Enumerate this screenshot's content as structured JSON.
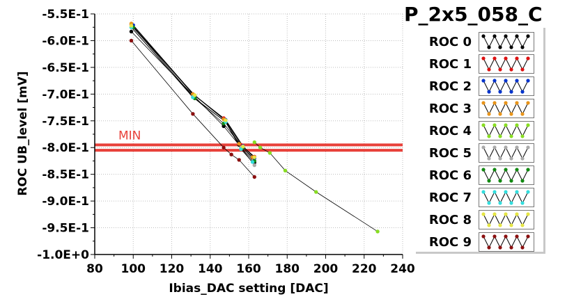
{
  "chart_data": {
    "type": "scatter",
    "title": "P_2x5_058_C",
    "xlabel": "Ibias_DAC setting [DAC]",
    "ylabel": "ROC UB_level [mV]",
    "xlim": [
      80,
      240
    ],
    "ylim": [
      -1.0,
      -0.55
    ],
    "x_ticks": [
      "80",
      "100",
      "120",
      "140",
      "160",
      "180",
      "200",
      "220",
      "240"
    ],
    "y_ticks": [
      "-5.5E-1",
      "-6.0E-1",
      "-6.5E-1",
      "-7.0E-1",
      "-7.5E-1",
      "-8.0E-1",
      "-8.5E-1",
      "-9.0E-1",
      "-9.5E-1",
      "-1.0E+0"
    ],
    "grid": true,
    "legend_position": "right",
    "min_band": {
      "label": "MIN",
      "y": [
        -0.795,
        -0.805
      ],
      "color": "#e8413a"
    },
    "series": [
      {
        "name": "ROC 0",
        "color": "#000000",
        "x": [
          99,
          132,
          147,
          155,
          163
        ],
        "y": [
          -0.583,
          -0.705,
          -0.76,
          -0.795,
          -0.828
        ]
      },
      {
        "name": "ROC 1",
        "color": "#dd1111",
        "x": [
          99,
          131,
          147,
          156,
          163
        ],
        "y": [
          -0.57,
          -0.7,
          -0.745,
          -0.795,
          -0.817
        ]
      },
      {
        "name": "ROC 2",
        "color": "#0033cc",
        "x": [
          100,
          132,
          148,
          157,
          163
        ],
        "y": [
          -0.571,
          -0.703,
          -0.748,
          -0.797,
          -0.82
        ]
      },
      {
        "name": "ROC 3",
        "color": "#e8941a",
        "x": [
          99,
          131,
          147,
          155,
          162
        ],
        "y": [
          -0.568,
          -0.7,
          -0.747,
          -0.793,
          -0.818
        ]
      },
      {
        "name": "ROC 4",
        "color": "#88dd22",
        "x": [
          163,
          166,
          171,
          179,
          195,
          227
        ],
        "y": [
          -0.79,
          -0.8,
          -0.81,
          -0.843,
          -0.883,
          -0.957
        ]
      },
      {
        "name": "ROC 5",
        "color": "#aaaaaa",
        "x": [
          99,
          131,
          148,
          156,
          163
        ],
        "y": [
          -0.575,
          -0.705,
          -0.752,
          -0.8,
          -0.833
        ]
      },
      {
        "name": "ROC 6",
        "color": "#118811",
        "x": [
          100,
          132,
          147,
          157,
          163
        ],
        "y": [
          -0.575,
          -0.708,
          -0.755,
          -0.8,
          -0.825
        ]
      },
      {
        "name": "ROC 7",
        "color": "#33dddd",
        "x": [
          99,
          131,
          148,
          156,
          162
        ],
        "y": [
          -0.575,
          -0.706,
          -0.752,
          -0.803,
          -0.827
        ]
      },
      {
        "name": "ROC 8",
        "color": "#e5e544",
        "x": [
          99,
          132,
          148,
          157,
          163
        ],
        "y": [
          -0.572,
          -0.702,
          -0.749,
          -0.798,
          -0.818
        ]
      },
      {
        "name": "ROC 9",
        "color": "#8b1010",
        "x": [
          99,
          131,
          147,
          151,
          155,
          163
        ],
        "y": [
          -0.6,
          -0.737,
          -0.8,
          -0.813,
          -0.823,
          -0.855
        ]
      }
    ]
  }
}
